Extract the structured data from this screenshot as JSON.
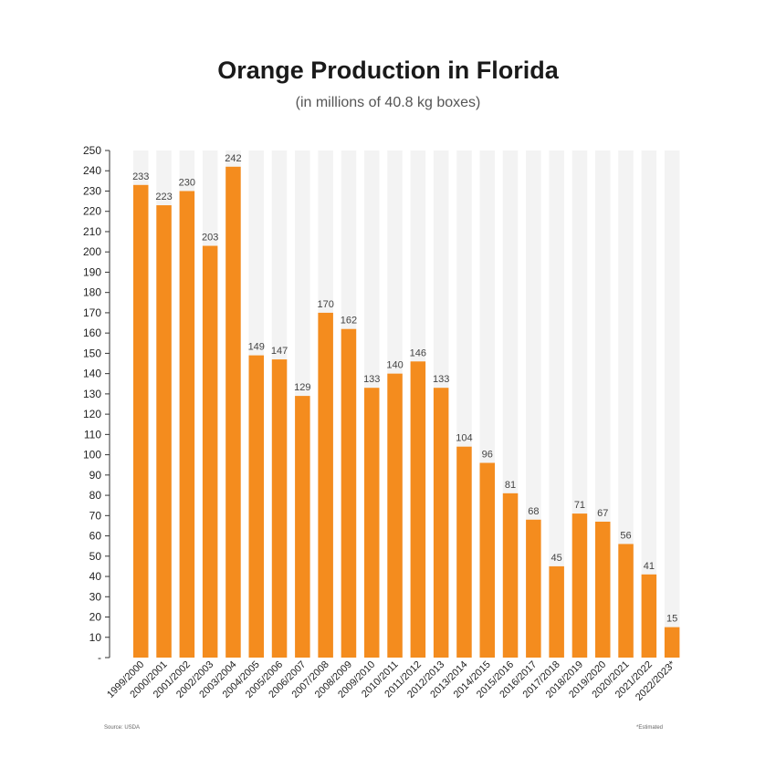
{
  "chart_data": {
    "type": "bar",
    "title": "Orange Production in Florida",
    "subtitle": "(in millions of 40.8 kg boxes)",
    "categories": [
      "1999/2000",
      "2000/2001",
      "2001/2002",
      "2002/2003",
      "2003/2004",
      "2004/2005",
      "2005/2006",
      "2006/2007",
      "2007/2008",
      "2008/2009",
      "2009/2010",
      "2010/2011",
      "2011/2012",
      "2012/2013",
      "2013/2014",
      "2014/2015",
      "2015/2016",
      "2016/2017",
      "2017/2018",
      "2018/2019",
      "2019/2020",
      "2020/2021",
      "2021/2022",
      "2022/2023*"
    ],
    "values": [
      233,
      223,
      230,
      203,
      242,
      149,
      147,
      129,
      170,
      162,
      133,
      140,
      146,
      133,
      104,
      96,
      81,
      68,
      45,
      71,
      67,
      56,
      41,
      15
    ],
    "yticks": [
      "250",
      "240",
      "230",
      "220",
      "210",
      "200",
      "190",
      "180",
      "170",
      "160",
      "150",
      "140",
      "130",
      "120",
      "110",
      "100",
      "90",
      "80",
      "70",
      "60",
      "50",
      "40",
      "30",
      "20",
      "10",
      "-"
    ],
    "ylim": [
      0,
      250
    ],
    "grid": false,
    "bar_color": "#f48c1e",
    "column_bg_color": "#f3f3f3",
    "source": "Source: USDA",
    "note": "*Estimated"
  }
}
